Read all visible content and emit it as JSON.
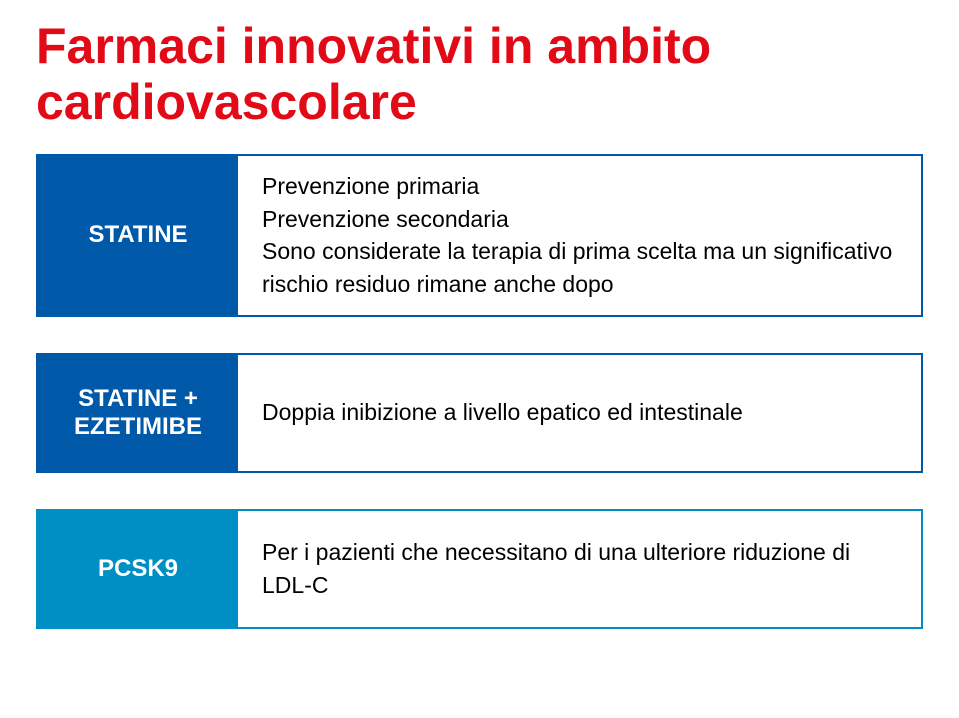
{
  "title": {
    "text": "Farmaci innovativi in ambito cardiovascolare",
    "color": "#e20a17"
  },
  "rows": [
    {
      "label": "STATINE",
      "label_bg": "#0058a9",
      "border_color": "#0058a9",
      "tall": true,
      "lines": [
        "Prevenzione primaria",
        "Prevenzione secondaria",
        "Sono considerate la terapia di prima scelta ma un significativo rischio residuo rimane anche dopo"
      ]
    },
    {
      "label": "STATINE + EZETIMIBE",
      "label_bg": "#0058a9",
      "border_color": "#0058a9",
      "tall": false,
      "lines": [
        "Doppia inibizione a livello epatico ed intestinale"
      ]
    },
    {
      "label": "PCSK9",
      "label_bg": "#008fc4",
      "border_color": "#008fc4",
      "tall": false,
      "lines": [
        "Per i pazienti che necessitano di una ulteriore riduzione di LDL-C"
      ]
    }
  ]
}
